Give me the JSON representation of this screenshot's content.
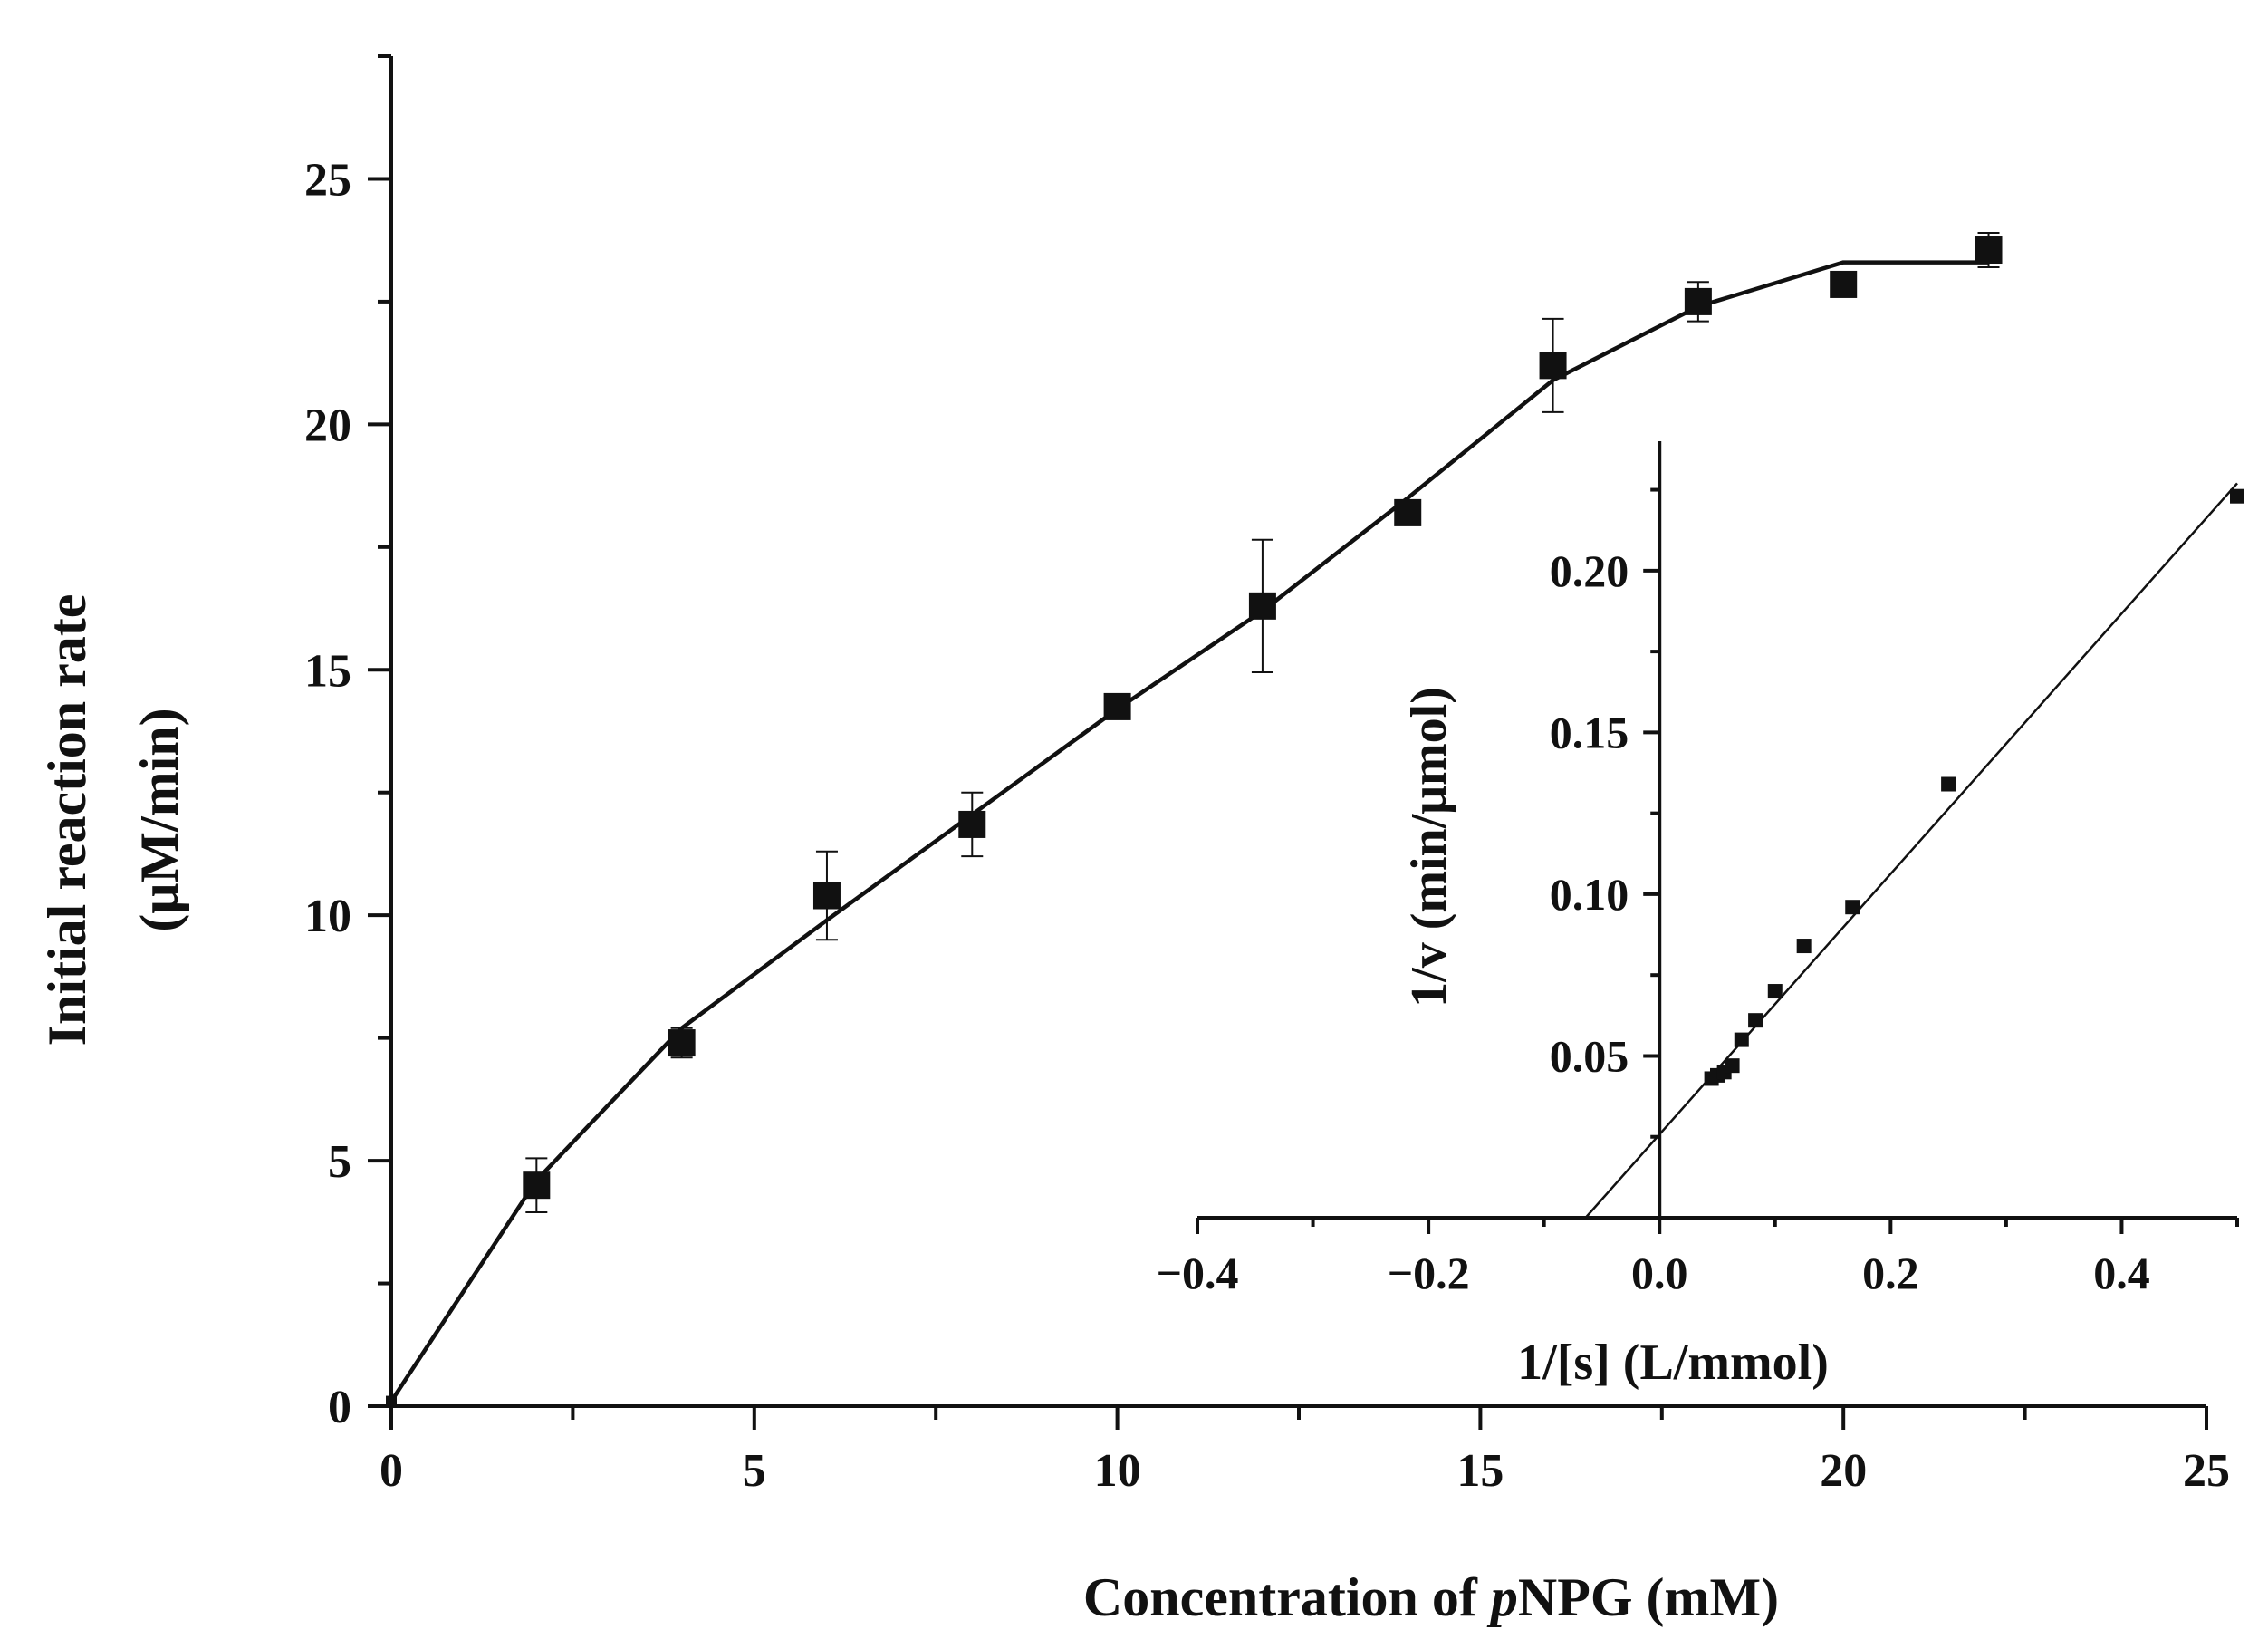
{
  "chart_data": [
    {
      "id": "main",
      "type": "scatter",
      "xlabel": "Concentration of pNPG (mM)",
      "xlabel_parts": [
        "Concentration of ",
        "p",
        "NPG (mM)"
      ],
      "ylabel_line1": "Initial reaction rate",
      "ylabel_line2": "(μM/min)",
      "xlim": [
        0,
        25
      ],
      "ylim": [
        0,
        27.5
      ],
      "x_ticks": [
        0,
        5,
        10,
        15,
        20,
        25
      ],
      "y_ticks": [
        0,
        5,
        10,
        15,
        20,
        25
      ],
      "x_tick_labels": [
        "0",
        "5",
        "10",
        "15",
        "20",
        "25"
      ],
      "y_tick_labels": [
        "0",
        "5",
        "10",
        "15",
        "20",
        "25"
      ],
      "grid": false,
      "series": [
        {
          "name": "Initial reaction rate",
          "marker": "square",
          "points": [
            {
              "x": 0,
              "y": 0.1,
              "err": 0
            },
            {
              "x": 2,
              "y": 4.5,
              "err": 0.55
            },
            {
              "x": 4,
              "y": 7.4,
              "err": 0.3
            },
            {
              "x": 6,
              "y": 10.4,
              "err": 0.9
            },
            {
              "x": 8,
              "y": 11.85,
              "err": 0.65
            },
            {
              "x": 10,
              "y": 14.25,
              "err": 0.15
            },
            {
              "x": 12,
              "y": 16.3,
              "err": 1.35
            },
            {
              "x": 14,
              "y": 18.2,
              "err": 0.2
            },
            {
              "x": 16,
              "y": 21.2,
              "err": 0.95
            },
            {
              "x": 18,
              "y": 22.5,
              "err": 0.4
            },
            {
              "x": 20,
              "y": 22.85,
              "err": 0.2
            },
            {
              "x": 22,
              "y": 23.55,
              "err": 0.35
            }
          ]
        },
        {
          "name": "Fit curve",
          "type": "line",
          "x": [
            0,
            2,
            4,
            6,
            8,
            10,
            12,
            14,
            16,
            18,
            20,
            22
          ],
          "y": [
            0.1,
            4.6,
            7.7,
            9.9,
            12.05,
            14.2,
            16.2,
            18.5,
            20.9,
            22.4,
            23.3,
            23.3
          ]
        }
      ]
    },
    {
      "id": "inset",
      "type": "scatter",
      "xlabel": "1/[s] (L/mmol)",
      "ylabel": "1/v (min/μmol)",
      "xlim": [
        -0.4,
        0.5
      ],
      "ylim": [
        0,
        0.24
      ],
      "x_ticks": [
        -0.4,
        -0.2,
        0.0,
        0.2,
        0.4
      ],
      "y_ticks": [
        0.05,
        0.1,
        0.15,
        0.2
      ],
      "x_tick_labels": [
        "−0.4",
        "−0.2",
        "0.0",
        "0.2",
        "0.4"
      ],
      "y_tick_labels": [
        "0.05",
        "0.10",
        "0.15",
        "0.20"
      ],
      "grid": false,
      "series": [
        {
          "name": "Lineweaver-Burk points",
          "marker": "square",
          "x": [
            0.045,
            0.05,
            0.056,
            0.063,
            0.071,
            0.083,
            0.1,
            0.125,
            0.167,
            0.25,
            0.5
          ],
          "y": [
            0.043,
            0.044,
            0.045,
            0.047,
            0.055,
            0.061,
            0.07,
            0.084,
            0.096,
            0.134,
            0.223
          ]
        },
        {
          "name": "Linear fit",
          "type": "line",
          "x": [
            -0.064,
            0.5
          ],
          "y": [
            0,
            0.227
          ]
        }
      ]
    }
  ]
}
